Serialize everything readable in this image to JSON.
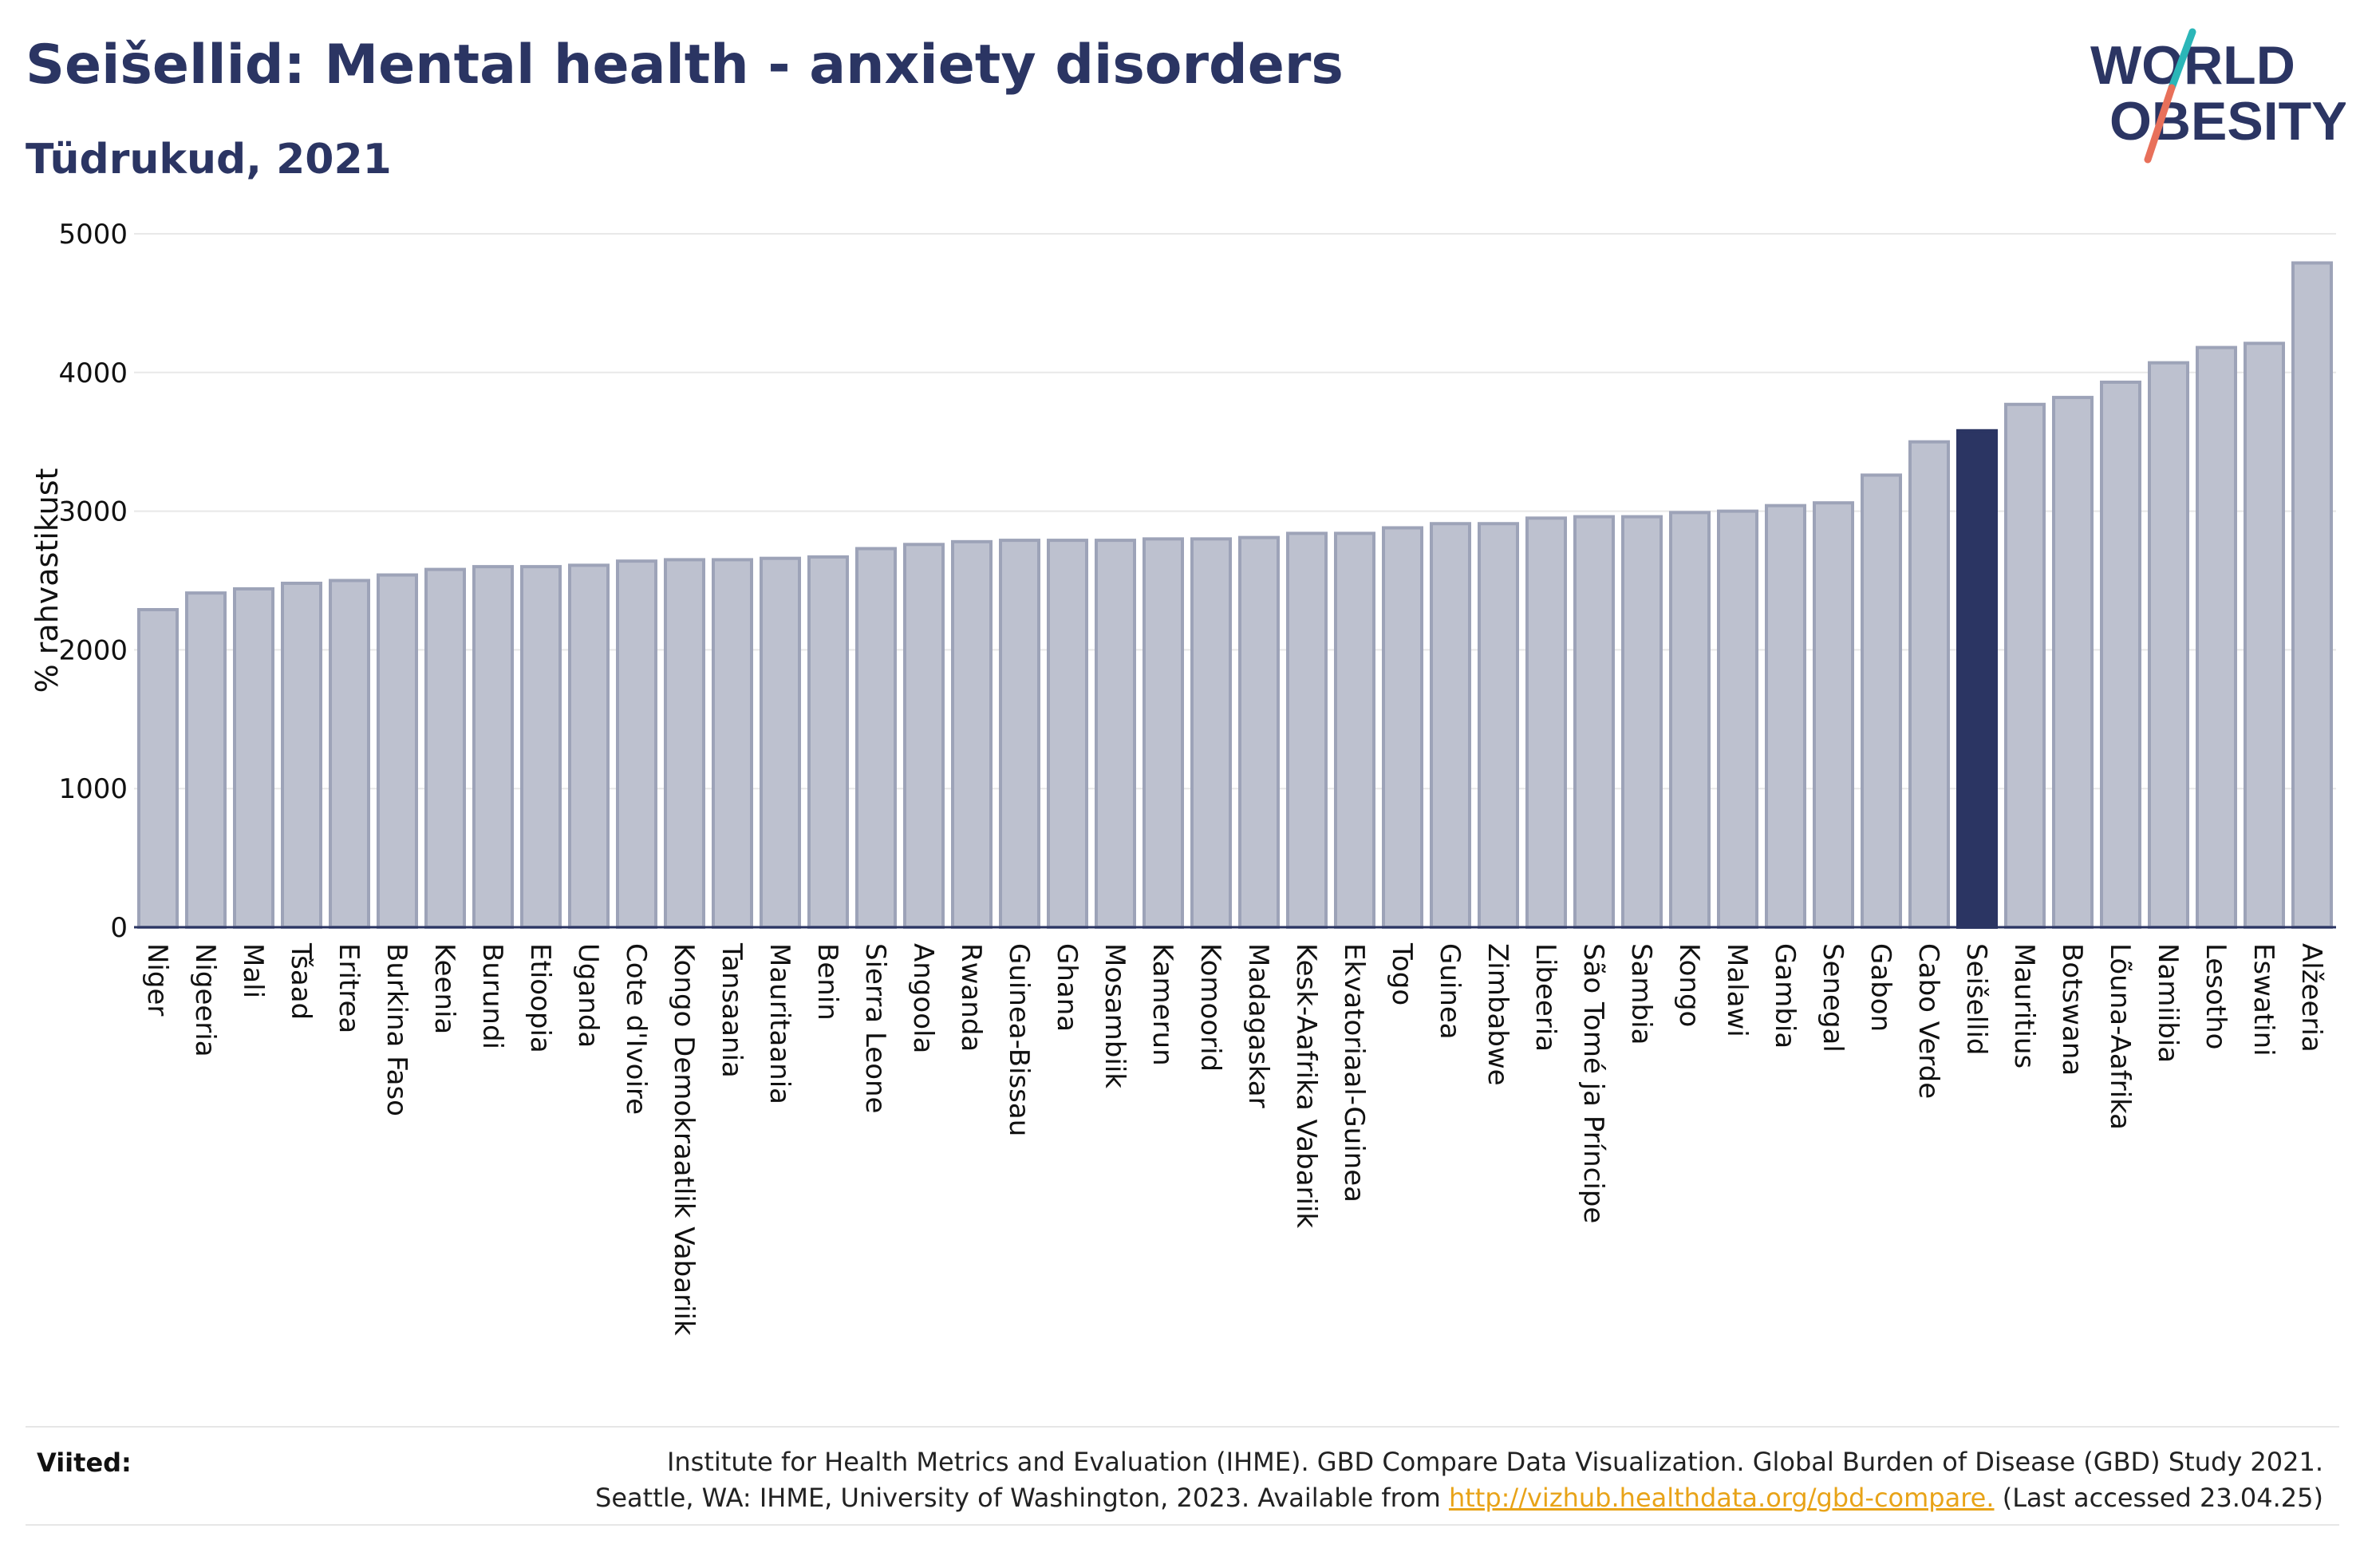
{
  "header": {
    "title": "Seišellid: Mental health - anxiety disorders",
    "subtitle": "Tüdrukud, 2021"
  },
  "logo": {
    "line1": "WORLD",
    "line2": "OBESITY"
  },
  "colors": {
    "bar": "#bdc1cf",
    "bar_stroke": "#9da3b8",
    "highlight": "#2b3563",
    "text": "#2b3563",
    "grid": "#e8e8e8",
    "link": "#e8a318"
  },
  "chart_data": {
    "type": "bar",
    "ylabel": "% rahvastikust",
    "ylim": [
      0,
      5000
    ],
    "yticks": [
      "0",
      "1000",
      "2000",
      "3000",
      "4000",
      "5000"
    ],
    "grid": true,
    "highlight": "Seišellid",
    "categories": [
      "Niger",
      "Nigeeria",
      "Mali",
      "Tšaad",
      "Eritrea",
      "Burkina Faso",
      "Keenia",
      "Burundi",
      "Etioopia",
      "Uganda",
      "Cote d'Ivoire",
      "Kongo Demokraatlik Vabariik",
      "Tansaania",
      "Mauritaania",
      "Benin",
      "Sierra Leone",
      "Angoola",
      "Rwanda",
      "Guinea-Bissau",
      "Ghana",
      "Mosambiik",
      "Kamerun",
      "Komoorid",
      "Madagaskar",
      "Kesk-Aafrika Vabariik",
      "Ekvatoriaal-Guinea",
      "Togo",
      "Guinea",
      "Zimbabwe",
      "Libeeria",
      "São Tomé ja Príncipe",
      "Sambia",
      "Kongo",
      "Malawi",
      "Gambia",
      "Senegal",
      "Gabon",
      "Cabo Verde",
      "Seišellid",
      "Mauritius",
      "Botswana",
      "Lõuna-Aafrika",
      "Namiibia",
      "Lesotho",
      "Eswatini",
      "Alžeeria"
    ],
    "values": [
      2290,
      2410,
      2440,
      2480,
      2500,
      2540,
      2580,
      2600,
      2600,
      2610,
      2640,
      2650,
      2650,
      2660,
      2670,
      2730,
      2760,
      2780,
      2790,
      2790,
      2790,
      2800,
      2800,
      2810,
      2840,
      2840,
      2880,
      2910,
      2910,
      2950,
      2960,
      2960,
      2990,
      3000,
      3040,
      3060,
      3260,
      3500,
      3580,
      3770,
      3820,
      3930,
      4070,
      4180,
      4210,
      4790
    ]
  },
  "footer": {
    "label": "Viited:",
    "line1": "Institute for Health Metrics and Evaluation (IHME). GBD Compare Data Visualization. Global Burden of Disease (GBD) Study 2021.",
    "line2_pre": "Seattle, WA: IHME, University of Washington, 2023. Available from ",
    "link": "http://vizhub.healthdata.org/gbd-compare.",
    "line2_post": " (Last accessed 23.04.25)"
  }
}
